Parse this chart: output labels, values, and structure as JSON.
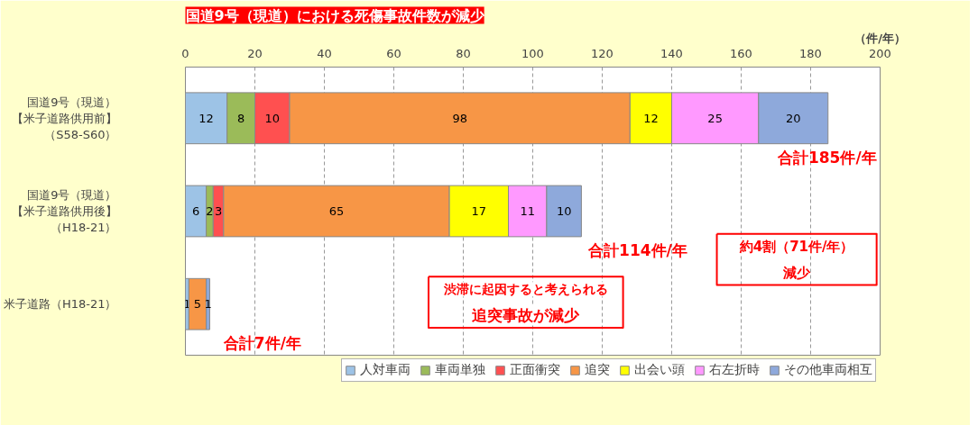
{
  "chart_data": {
    "type": "bar",
    "orientation": "horizontal",
    "stacked": true,
    "title": "国道9号（現道）における死傷事故件数が減少",
    "xlabel": "（件/年）",
    "categories": [
      "国道9号（現道）【米子道路供用前】（S58-S60）",
      "国道9号（現道）【米子道路供用後】（H18-21）",
      "米子道路（H18-21）"
    ],
    "series": [
      {
        "name": "人対車両",
        "color": "#9dc3e6",
        "values": [
          12,
          6,
          1
        ]
      },
      {
        "name": "車両単独",
        "color": "#9bbb59",
        "values": [
          8,
          2,
          null
        ]
      },
      {
        "name": "正面衝突",
        "color": "#ff5050",
        "values": [
          10,
          3,
          null
        ]
      },
      {
        "name": "追突",
        "color": "#f79646",
        "values": [
          98,
          65,
          5
        ]
      },
      {
        "name": "出会い頭",
        "color": "#ffff00",
        "values": [
          12,
          17,
          null
        ]
      },
      {
        "name": "右左折時",
        "color": "#ff99ff",
        "values": [
          25,
          11,
          null
        ]
      },
      {
        "name": "その他車両相互",
        "color": "#8ea9db",
        "values": [
          20,
          10,
          1
        ]
      }
    ],
    "data_labels": true,
    "totals": [
      "合計185件/年",
      "合計114件/年",
      "合計7件/年"
    ],
    "annotations": [
      "渋滞に起因すると考えられる",
      "追突事故が減少",
      "約4割（71件/年）",
      "減少"
    ],
    "xlim": [
      0,
      200
    ],
    "xticks": [
      0,
      20,
      40,
      60,
      80,
      100,
      120,
      140,
      160,
      180,
      200
    ],
    "grid": "x",
    "legend": "bottom"
  }
}
